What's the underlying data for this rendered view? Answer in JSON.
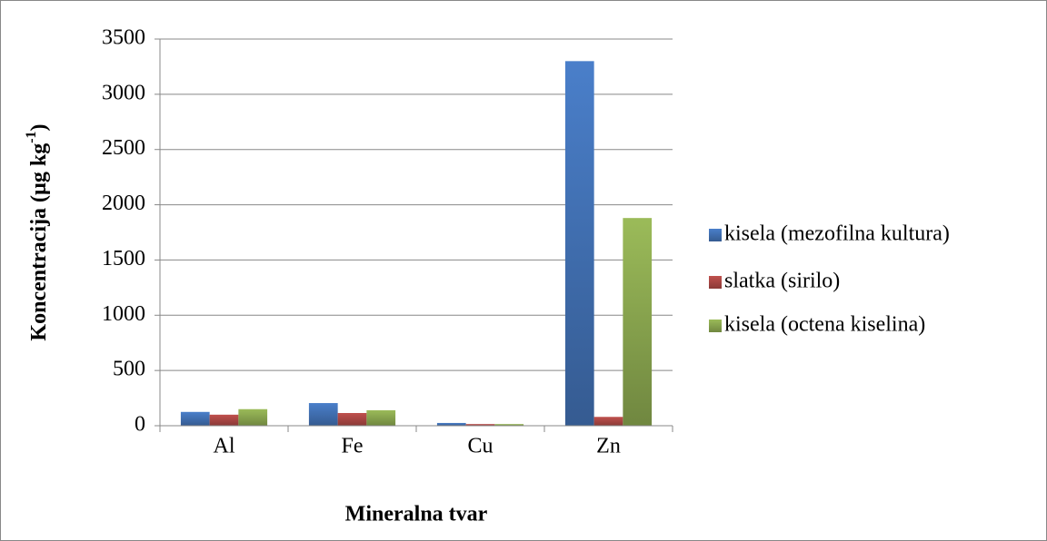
{
  "chart_data": {
    "type": "bar",
    "xlabel": "Mineralna tvar",
    "ylabel": {
      "text": "Koncentracija (µg kg",
      "superscript": "-1",
      "suffix": ")"
    },
    "categories": [
      "Al",
      "Fe",
      "Cu",
      "Zn"
    ],
    "series": [
      {
        "name": "kisela (mezofilna kultura)",
        "color": "#4a7fca",
        "values": [
          125,
          205,
          25,
          3300
        ]
      },
      {
        "name": "slatka (sirilo)",
        "color": "#c0504d",
        "values": [
          100,
          115,
          15,
          80
        ]
      },
      {
        "name": "kisela (octena kiselina)",
        "color": "#9bbb59",
        "values": [
          150,
          140,
          15,
          1880
        ]
      }
    ],
    "ylim": [
      0,
      3500
    ],
    "yticks": [
      0,
      500,
      1000,
      1500,
      2000,
      2500,
      3000,
      3500
    ],
    "grid": true,
    "legend": "right"
  }
}
